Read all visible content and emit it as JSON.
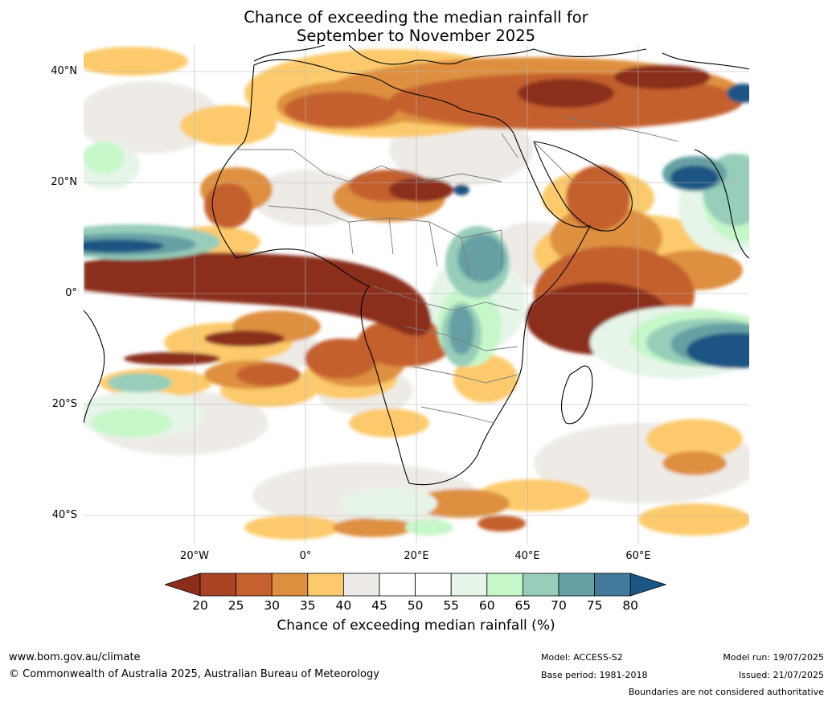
{
  "title": {
    "line1": "Chance of exceeding the median rainfall for",
    "line2": "September to November 2025"
  },
  "map": {
    "region": "Africa",
    "lat_labels": [
      "40°N",
      "20°N",
      "0°",
      "20°S",
      "40°S"
    ],
    "lon_labels": [
      "20°W",
      "0°",
      "20°E",
      "40°E",
      "60°E"
    ]
  },
  "colorbar": {
    "ticks": [
      "20",
      "25",
      "30",
      "35",
      "40",
      "45",
      "50",
      "55",
      "60",
      "65",
      "70",
      "75",
      "80"
    ],
    "colors": [
      "#8b2f1c",
      "#a84424",
      "#c4612f",
      "#de9040",
      "#fcca6c",
      "#eeebe6",
      "#ffffff",
      "#ffffff",
      "#e6f5e8",
      "#c6f7c9",
      "#97cdb9",
      "#66a0a4",
      "#417a9c",
      "#1a5583"
    ],
    "label": "Chance of exceeding median rainfall (%)"
  },
  "footer": {
    "url": "www.bom.gov.au/climate",
    "copyright": "© Commonwealth of Australia 2025, Australian Bureau of Meteorology",
    "model": "Model: ACCESS-S2",
    "base_period": "Base period: 1981-2018",
    "model_run": "Model run: 19/07/2025",
    "issued": "Issued: 21/07/2025",
    "disclaimer": "Boundaries are not considered authoritative"
  }
}
